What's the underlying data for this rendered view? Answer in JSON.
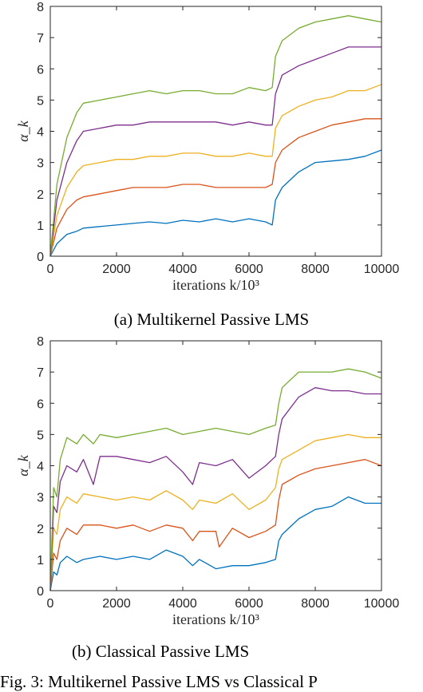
{
  "captions": {
    "a": "(a) Multikernel Passive LMS",
    "b": "(b) Classical Passive LMS",
    "figure": "Fig. 3: Multikernel Passive LMS vs Classical P"
  },
  "chart_data": [
    {
      "type": "line",
      "title": "",
      "xlabel": "iterations k/10³",
      "ylabel": "α_k",
      "xlim": [
        0,
        10000
      ],
      "ylim": [
        0,
        8
      ],
      "xticks": [
        "0",
        "2000",
        "4000",
        "6000",
        "8000",
        "10000"
      ],
      "yticks": [
        "0",
        "1",
        "2",
        "3",
        "4",
        "5",
        "6",
        "7",
        "8"
      ],
      "grid": false,
      "series": [
        {
          "color": "#0072bd",
          "x": [
            0,
            200,
            500,
            800,
            1000,
            1500,
            2000,
            2500,
            3000,
            3500,
            4000,
            4500,
            5000,
            5500,
            6000,
            6500,
            6700,
            6800,
            7000,
            7500,
            8000,
            8500,
            9000,
            9500,
            10000
          ],
          "y": [
            0,
            0.4,
            0.7,
            0.8,
            0.9,
            0.95,
            1.0,
            1.05,
            1.1,
            1.05,
            1.15,
            1.1,
            1.2,
            1.1,
            1.2,
            1.1,
            1.0,
            1.8,
            2.2,
            2.7,
            3.0,
            3.05,
            3.1,
            3.2,
            3.4
          ]
        },
        {
          "color": "#d95319",
          "x": [
            0,
            200,
            500,
            800,
            1000,
            1500,
            2000,
            2500,
            3000,
            3500,
            4000,
            4500,
            5000,
            5500,
            6000,
            6500,
            6700,
            6800,
            7000,
            7500,
            8000,
            8500,
            9000,
            9500,
            10000
          ],
          "y": [
            0,
            0.9,
            1.5,
            1.8,
            1.9,
            2.0,
            2.1,
            2.2,
            2.2,
            2.2,
            2.3,
            2.3,
            2.2,
            2.2,
            2.2,
            2.2,
            2.3,
            3.0,
            3.4,
            3.8,
            4.0,
            4.2,
            4.3,
            4.4,
            4.4
          ]
        },
        {
          "color": "#edb120",
          "x": [
            0,
            200,
            500,
            800,
            1000,
            1500,
            2000,
            2500,
            3000,
            3500,
            4000,
            4500,
            5000,
            5500,
            6000,
            6500,
            6700,
            6800,
            7000,
            7500,
            8000,
            8500,
            9000,
            9500,
            10000
          ],
          "y": [
            0,
            1.3,
            2.2,
            2.7,
            2.9,
            3.0,
            3.1,
            3.1,
            3.2,
            3.2,
            3.3,
            3.3,
            3.2,
            3.2,
            3.3,
            3.2,
            3.2,
            4.1,
            4.5,
            4.8,
            5.0,
            5.1,
            5.3,
            5.3,
            5.5
          ]
        },
        {
          "color": "#7e2f8e",
          "x": [
            0,
            200,
            500,
            800,
            1000,
            1500,
            2000,
            2500,
            3000,
            3500,
            4000,
            4500,
            5000,
            5500,
            6000,
            6500,
            6700,
            6800,
            7000,
            7500,
            8000,
            8500,
            9000,
            9500,
            10000
          ],
          "y": [
            0,
            1.8,
            3.0,
            3.7,
            4.0,
            4.1,
            4.2,
            4.2,
            4.3,
            4.3,
            4.3,
            4.3,
            4.3,
            4.2,
            4.3,
            4.2,
            4.2,
            5.2,
            5.8,
            6.1,
            6.3,
            6.5,
            6.7,
            6.7,
            6.7
          ]
        },
        {
          "color": "#77ac30",
          "x": [
            0,
            200,
            500,
            800,
            1000,
            1500,
            2000,
            2500,
            3000,
            3500,
            4000,
            4500,
            5000,
            5500,
            6000,
            6500,
            6700,
            6800,
            7000,
            7500,
            8000,
            8500,
            9000,
            9500,
            10000
          ],
          "y": [
            0,
            2.3,
            3.8,
            4.6,
            4.9,
            5.0,
            5.1,
            5.2,
            5.3,
            5.2,
            5.3,
            5.3,
            5.2,
            5.2,
            5.4,
            5.3,
            5.4,
            6.4,
            6.9,
            7.3,
            7.5,
            7.6,
            7.7,
            7.6,
            7.5
          ]
        }
      ]
    },
    {
      "type": "line",
      "title": "",
      "xlabel": "iterations k/10³",
      "ylabel": "α_k",
      "xlim": [
        0,
        10000
      ],
      "ylim": [
        0,
        8
      ],
      "xticks": [
        "0",
        "2000",
        "4000",
        "6000",
        "8000",
        "10000"
      ],
      "yticks": [
        "0",
        "1",
        "2",
        "3",
        "4",
        "5",
        "6",
        "7",
        "8"
      ],
      "grid": false,
      "series": [
        {
          "color": "#0072bd",
          "x": [
            0,
            100,
            200,
            300,
            500,
            800,
            1000,
            1500,
            2000,
            2500,
            3000,
            3500,
            4000,
            4300,
            4500,
            5000,
            5500,
            6000,
            6500,
            6800,
            6900,
            7000,
            7500,
            8000,
            8500,
            9000,
            9500,
            10000
          ],
          "y": [
            0,
            0.6,
            0.5,
            0.9,
            1.1,
            0.9,
            1.0,
            1.1,
            1.0,
            1.1,
            1.0,
            1.3,
            1.1,
            0.8,
            1.0,
            0.7,
            0.8,
            0.8,
            0.9,
            1.0,
            1.6,
            1.8,
            2.3,
            2.6,
            2.7,
            3.0,
            2.8,
            2.8
          ]
        },
        {
          "color": "#d95319",
          "x": [
            0,
            100,
            200,
            300,
            500,
            800,
            1000,
            1500,
            2000,
            2500,
            3000,
            3500,
            4000,
            4300,
            4500,
            5000,
            5100,
            5500,
            6000,
            6500,
            6800,
            6900,
            7000,
            7500,
            8000,
            8500,
            9000,
            9500,
            10000
          ],
          "y": [
            0,
            1.2,
            1.0,
            1.6,
            2.0,
            1.8,
            2.1,
            2.1,
            2.0,
            2.1,
            1.9,
            2.1,
            2.0,
            1.6,
            1.9,
            1.9,
            1.4,
            2.0,
            1.7,
            1.9,
            2.1,
            2.9,
            3.4,
            3.7,
            3.9,
            4.0,
            4.1,
            4.2,
            4.0
          ]
        },
        {
          "color": "#edb120",
          "x": [
            0,
            100,
            200,
            300,
            500,
            800,
            1000,
            1500,
            2000,
            2500,
            3000,
            3500,
            4000,
            4300,
            4500,
            5000,
            5500,
            6000,
            6500,
            6800,
            6900,
            7000,
            7500,
            8000,
            8500,
            9000,
            9500,
            10000
          ],
          "y": [
            0,
            2.0,
            1.8,
            2.6,
            3.0,
            2.8,
            3.1,
            3.0,
            2.9,
            3.0,
            2.9,
            3.2,
            2.9,
            2.6,
            2.9,
            2.8,
            3.1,
            2.6,
            2.9,
            3.3,
            3.9,
            4.2,
            4.5,
            4.8,
            4.9,
            5.0,
            4.9,
            4.9
          ]
        },
        {
          "color": "#7e2f8e",
          "x": [
            0,
            100,
            200,
            300,
            500,
            800,
            1000,
            1300,
            1500,
            2000,
            2500,
            3000,
            3500,
            4000,
            4300,
            4500,
            5000,
            5500,
            6000,
            6500,
            6800,
            6900,
            7000,
            7500,
            8000,
            8500,
            9000,
            9500,
            10000
          ],
          "y": [
            0,
            2.7,
            2.5,
            3.5,
            4.0,
            3.8,
            4.2,
            3.4,
            4.3,
            4.3,
            4.2,
            4.1,
            4.3,
            3.8,
            3.4,
            4.1,
            4.0,
            4.2,
            3.6,
            4.0,
            4.3,
            5.0,
            5.5,
            6.2,
            6.5,
            6.4,
            6.4,
            6.3,
            6.3
          ]
        },
        {
          "color": "#77ac30",
          "x": [
            0,
            100,
            200,
            300,
            500,
            800,
            1000,
            1300,
            1500,
            2000,
            2500,
            3000,
            3500,
            4000,
            4500,
            5000,
            5500,
            6000,
            6500,
            6800,
            6900,
            7000,
            7500,
            8000,
            8500,
            9000,
            9500,
            10000
          ],
          "y": [
            0,
            3.3,
            3.0,
            4.2,
            4.9,
            4.7,
            5.0,
            4.7,
            5.0,
            4.9,
            5.0,
            5.1,
            5.2,
            5.0,
            5.1,
            5.2,
            5.1,
            5.0,
            5.2,
            5.3,
            6.0,
            6.5,
            7.0,
            7.0,
            7.0,
            7.1,
            7.0,
            6.8
          ]
        }
      ]
    }
  ]
}
